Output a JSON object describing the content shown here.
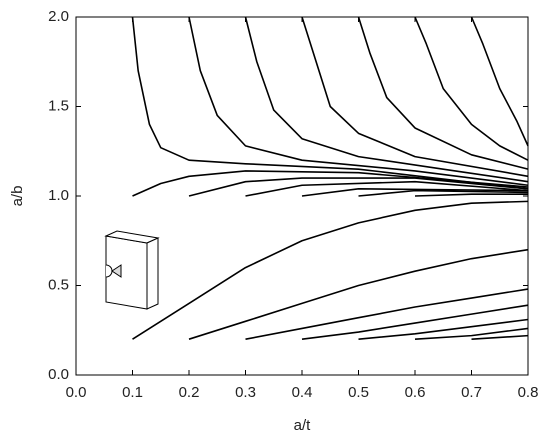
{
  "chart_data": {
    "type": "line",
    "x_label": "a/t",
    "y_label": "a/b",
    "xlim": [
      0,
      0.8
    ],
    "ylim": [
      0,
      2.0
    ],
    "xticks": [
      {
        "value": 0,
        "label": "0.0"
      },
      {
        "value": 0.1,
        "label": "0.1"
      },
      {
        "value": 0.2,
        "label": "0.2"
      },
      {
        "value": 0.3,
        "label": "0.3"
      },
      {
        "value": 0.4,
        "label": "0.4"
      },
      {
        "value": 0.5,
        "label": "0.5"
      },
      {
        "value": 0.6,
        "label": "0.6"
      },
      {
        "value": 0.7,
        "label": "0.7"
      },
      {
        "value": 0.8,
        "label": "0.8"
      }
    ],
    "yticks": [
      {
        "value": 0,
        "label": "0.0"
      },
      0.5,
      {
        "value": 1,
        "label": "1.0"
      },
      1.5,
      {
        "value": 2,
        "label": "2.0"
      }
    ],
    "series": [
      {
        "color": "#000000",
        "x": [
          0.1,
          0.11,
          0.13,
          0.15,
          0.2,
          0.3,
          0.5,
          0.8
        ],
        "values": [
          2.0,
          1.7,
          1.4,
          1.27,
          1.2,
          1.18,
          1.15,
          1.04
        ]
      },
      {
        "color": "#000000",
        "x": [
          0.2,
          0.22,
          0.25,
          0.3,
          0.4,
          0.6,
          0.8
        ],
        "values": [
          2.0,
          1.7,
          1.45,
          1.28,
          1.2,
          1.14,
          1.06
        ]
      },
      {
        "color": "#000000",
        "x": [
          0.3,
          0.32,
          0.35,
          0.4,
          0.5,
          0.65,
          0.8
        ],
        "values": [
          2.0,
          1.75,
          1.48,
          1.32,
          1.22,
          1.15,
          1.08
        ]
      },
      {
        "color": "#000000",
        "x": [
          0.4,
          0.42,
          0.45,
          0.5,
          0.6,
          0.8
        ],
        "values": [
          2.0,
          1.8,
          1.5,
          1.35,
          1.22,
          1.11
        ]
      },
      {
        "color": "#000000",
        "x": [
          0.5,
          0.52,
          0.55,
          0.6,
          0.7,
          0.8
        ],
        "values": [
          2.0,
          1.8,
          1.55,
          1.38,
          1.23,
          1.15
        ]
      },
      {
        "color": "#000000",
        "x": [
          0.6,
          0.62,
          0.65,
          0.7,
          0.75,
          0.8
        ],
        "values": [
          2.0,
          1.85,
          1.6,
          1.4,
          1.28,
          1.2
        ]
      },
      {
        "color": "#000000",
        "x": [
          0.7,
          0.72,
          0.75,
          0.78,
          0.8
        ],
        "values": [
          2.0,
          1.85,
          1.6,
          1.42,
          1.28
        ]
      },
      {
        "color": "#000000",
        "x": [
          0.1,
          0.15,
          0.2,
          0.3,
          0.5,
          0.8
        ],
        "values": [
          1.0,
          1.07,
          1.11,
          1.14,
          1.13,
          1.05
        ]
      },
      {
        "color": "#000000",
        "x": [
          0.2,
          0.3,
          0.4,
          0.6,
          0.8
        ],
        "values": [
          1.0,
          1.08,
          1.1,
          1.1,
          1.04
        ]
      },
      {
        "color": "#000000",
        "x": [
          0.3,
          0.4,
          0.6,
          0.8
        ],
        "values": [
          1.0,
          1.06,
          1.08,
          1.03
        ]
      },
      {
        "color": "#000000",
        "x": [
          0.4,
          0.5,
          0.8
        ],
        "values": [
          1.0,
          1.04,
          1.03
        ]
      },
      {
        "color": "#000000",
        "x": [
          0.5,
          0.6,
          0.8
        ],
        "values": [
          1.0,
          1.03,
          1.02
        ]
      },
      {
        "color": "#000000",
        "x": [
          0.6,
          0.7,
          0.8
        ],
        "values": [
          1.0,
          1.01,
          1.01
        ]
      },
      {
        "color": "#000000",
        "x": [
          0.1,
          0.2,
          0.3,
          0.4,
          0.5,
          0.6,
          0.7,
          0.8
        ],
        "values": [
          0.2,
          0.4,
          0.6,
          0.75,
          0.85,
          0.92,
          0.96,
          0.97
        ]
      },
      {
        "color": "#000000",
        "x": [
          0.2,
          0.3,
          0.4,
          0.5,
          0.6,
          0.7,
          0.8
        ],
        "values": [
          0.2,
          0.3,
          0.4,
          0.5,
          0.58,
          0.65,
          0.7
        ]
      },
      {
        "color": "#000000",
        "x": [
          0.3,
          0.4,
          0.5,
          0.6,
          0.7,
          0.8
        ],
        "values": [
          0.2,
          0.26,
          0.32,
          0.38,
          0.43,
          0.48
        ]
      },
      {
        "color": "#000000",
        "x": [
          0.4,
          0.5,
          0.6,
          0.7,
          0.8
        ],
        "values": [
          0.2,
          0.24,
          0.29,
          0.34,
          0.39
        ]
      },
      {
        "color": "#000000",
        "x": [
          0.5,
          0.6,
          0.7,
          0.8
        ],
        "values": [
          0.2,
          0.23,
          0.27,
          0.31
        ]
      },
      {
        "color": "#000000",
        "x": [
          0.6,
          0.7,
          0.8
        ],
        "values": [
          0.2,
          0.22,
          0.26
        ]
      },
      {
        "color": "#000000",
        "x": [
          0.7,
          0.8
        ],
        "values": [
          0.2,
          0.22
        ]
      }
    ]
  }
}
